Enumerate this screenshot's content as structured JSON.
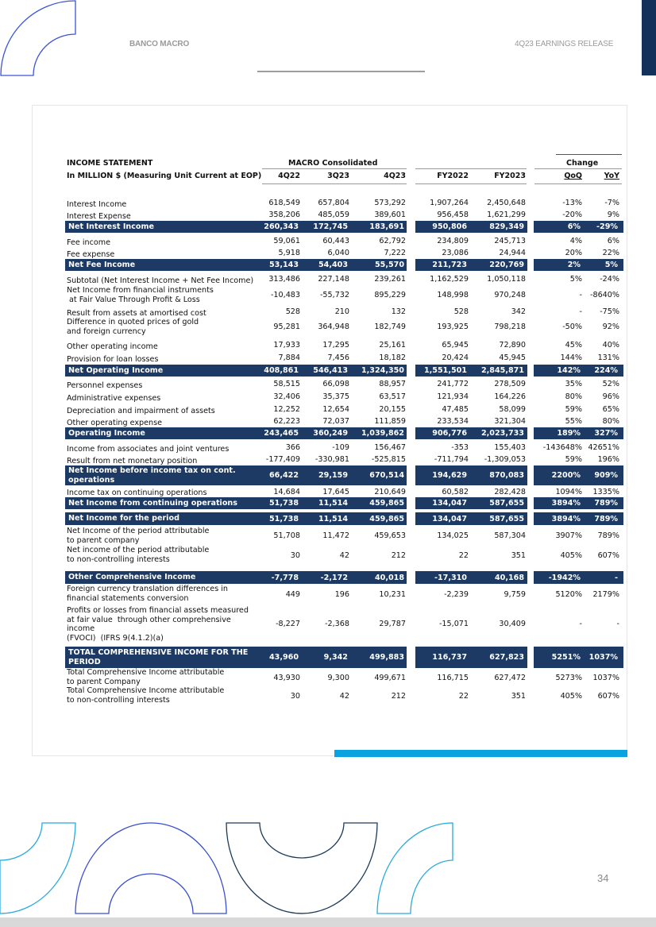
{
  "header": {
    "company": "BANCO MACRO",
    "report": "4Q23 EARNINGS RELEASE"
  },
  "page_number": "34",
  "table": {
    "title": "INCOME STATEMENT",
    "group_quarters": "MACRO Consolidated",
    "group_change": "Change",
    "units_label": "In MILLION $ (Measuring Unit Current at EOP)",
    "columns": [
      "4Q22",
      "3Q23",
      "4Q23",
      "FY2022",
      "FY2023",
      "QoQ",
      "YoY"
    ],
    "rows": [
      {
        "label": [
          "Interest Income"
        ],
        "values": [
          "618,549",
          "657,804",
          "573,292",
          "1,907,264",
          "2,450,648",
          "-13%",
          "-7%"
        ],
        "highlight": false
      },
      {
        "label": [
          "Interest Expense"
        ],
        "values": [
          "358,206",
          "485,059",
          "389,601",
          "956,458",
          "1,621,299",
          "-20%",
          "9%"
        ],
        "highlight": false
      },
      {
        "label": [
          "Net Interest Income"
        ],
        "values": [
          "260,343",
          "172,745",
          "183,691",
          "950,806",
          "829,349",
          "6%",
          "-29%"
        ],
        "highlight": true
      },
      {
        "label": [
          "Fee income"
        ],
        "values": [
          "59,061",
          "60,443",
          "62,792",
          "234,809",
          "245,713",
          "4%",
          "6%"
        ],
        "highlight": false
      },
      {
        "label": [
          "Fee expense"
        ],
        "values": [
          "5,918",
          "6,040",
          "7,222",
          "23,086",
          "24,944",
          "20%",
          "22%"
        ],
        "highlight": false
      },
      {
        "label": [
          "Net Fee Income"
        ],
        "values": [
          "53,143",
          "54,403",
          "55,570",
          "211,723",
          "220,769",
          "2%",
          "5%"
        ],
        "highlight": true
      },
      {
        "label": [
          "Subtotal (Net Interest Income + Net Fee Income)"
        ],
        "values": [
          "313,486",
          "227,148",
          "239,261",
          "1,162,529",
          "1,050,118",
          "5%",
          "-24%"
        ],
        "highlight": false
      },
      {
        "label": [
          "Net Income from financial instruments",
          " at Fair Value Through Profit & Loss"
        ],
        "values": [
          "-10,483",
          "-55,732",
          "895,229",
          "148,998",
          "970,248",
          "-",
          "-8640%"
        ],
        "highlight": false
      },
      {
        "label": [
          "Result from assets at amortised cost"
        ],
        "values": [
          "528",
          "210",
          "132",
          "528",
          "342",
          "-",
          "-75%"
        ],
        "highlight": false
      },
      {
        "label": [
          "Difference in quoted prices of gold",
          "and foreign currency"
        ],
        "values": [
          "95,281",
          "364,948",
          "182,749",
          "193,925",
          "798,218",
          "-50%",
          "92%"
        ],
        "highlight": false
      },
      {
        "label": [
          "Other operating income"
        ],
        "values": [
          "17,933",
          "17,295",
          "25,161",
          "65,945",
          "72,890",
          "45%",
          "40%"
        ],
        "highlight": false
      },
      {
        "label": [
          "Provision for loan losses"
        ],
        "values": [
          "7,884",
          "7,456",
          "18,182",
          "20,424",
          "45,945",
          "144%",
          "131%"
        ],
        "highlight": false
      },
      {
        "label": [
          "Net Operating Income"
        ],
        "values": [
          "408,861",
          "546,413",
          "1,324,350",
          "1,551,501",
          "2,845,871",
          "142%",
          "224%"
        ],
        "highlight": true
      },
      {
        "label": [
          "Personnel expenses"
        ],
        "values": [
          "58,515",
          "66,098",
          "88,957",
          "241,772",
          "278,509",
          "35%",
          "52%"
        ],
        "highlight": false
      },
      {
        "label": [
          "Administrative expenses"
        ],
        "values": [
          "32,406",
          "35,375",
          "63,517",
          "121,934",
          "164,226",
          "80%",
          "96%"
        ],
        "highlight": false
      },
      {
        "label": [
          "Depreciation and impairment of assets"
        ],
        "values": [
          "12,252",
          "12,654",
          "20,155",
          "47,485",
          "58,099",
          "59%",
          "65%"
        ],
        "highlight": false
      },
      {
        "label": [
          "Other operating expense"
        ],
        "values": [
          "62,223",
          "72,037",
          "111,859",
          "233,534",
          "321,304",
          "55%",
          "80%"
        ],
        "highlight": false
      },
      {
        "label": [
          "Operating Income"
        ],
        "values": [
          "243,465",
          "360,249",
          "1,039,862",
          "906,776",
          "2,023,733",
          "189%",
          "327%"
        ],
        "highlight": true
      },
      {
        "label": [
          "Income from associates and joint ventures"
        ],
        "values": [
          "366",
          "-109",
          "156,467",
          "-353",
          "155,403",
          "-143648%",
          "42651%"
        ],
        "highlight": false
      },
      {
        "label": [
          "Result from net monetary position"
        ],
        "values": [
          "-177,409",
          "-330,981",
          "-525,815",
          "-711,794",
          "-1,309,053",
          "59%",
          "196%"
        ],
        "highlight": false
      },
      {
        "label": [
          "Net Income before income tax on cont.",
          "operations"
        ],
        "values": [
          "66,422",
          "29,159",
          "670,514",
          "194,629",
          "870,083",
          "2200%",
          "909%"
        ],
        "highlight": true
      },
      {
        "label": [
          "Income tax on continuing operations"
        ],
        "values": [
          "14,684",
          "17,645",
          "210,649",
          "60,582",
          "282,428",
          "1094%",
          "1335%"
        ],
        "highlight": false
      },
      {
        "label": [
          "Net Income from continuing operations"
        ],
        "values": [
          "51,738",
          "11,514",
          "459,865",
          "134,047",
          "587,655",
          "3894%",
          "789%"
        ],
        "highlight": true
      },
      {
        "label": [
          "Net Income for the period"
        ],
        "values": [
          "51,738",
          "11,514",
          "459,865",
          "134,047",
          "587,655",
          "3894%",
          "789%"
        ],
        "highlight": true
      },
      {
        "label": [
          "Net Income of the period attributable",
          "to parent company"
        ],
        "values": [
          "51,708",
          "11,472",
          "459,653",
          "134,025",
          "587,304",
          "3907%",
          "789%"
        ],
        "highlight": false
      },
      {
        "label": [
          "Net income of the period attributable",
          "to non-controlling interests"
        ],
        "values": [
          "30",
          "42",
          "212",
          "22",
          "351",
          "405%",
          "607%"
        ],
        "highlight": false
      },
      {
        "label": [
          "Other Comprehensive Income"
        ],
        "values": [
          "-7,778",
          "-2,172",
          "40,018",
          "-17,310",
          "40,168",
          "-1942%",
          "-"
        ],
        "highlight": true
      },
      {
        "label": [
          "Foreign currency translation differences in",
          "financial statements conversion"
        ],
        "values": [
          "449",
          "196",
          "10,231",
          "-2,239",
          "9,759",
          "5120%",
          "2179%"
        ],
        "highlight": false
      },
      {
        "label": [
          "Profits or losses from financial assets measured",
          "at fair value  through other comprehensive",
          "income",
          "(FVOCI)  (IFRS 9(4.1.2)(a)"
        ],
        "values": [
          "-8,227",
          "-2,368",
          "29,787",
          "-15,071",
          "30,409",
          "-",
          "-"
        ],
        "highlight": false
      },
      {
        "label": [
          "TOTAL COMPREHENSIVE INCOME FOR THE",
          "PERIOD"
        ],
        "values": [
          "43,960",
          "9,342",
          "499,883",
          "116,737",
          "627,823",
          "5251%",
          "1037%"
        ],
        "highlight": true
      },
      {
        "label": [
          "Total Comprehensive Income attributable",
          "to parent Company"
        ],
        "values": [
          "43,930",
          "9,300",
          "499,671",
          "116,715",
          "627,472",
          "5273%",
          "1037%"
        ],
        "highlight": false
      },
      {
        "label": [
          "Total Comprehensive Income attributable",
          "to non-controlling interests"
        ],
        "values": [
          "30",
          "42",
          "212",
          "22",
          "351",
          "405%",
          "607%"
        ],
        "highlight": false
      }
    ]
  },
  "colors": {
    "highlight_row": "#1c3a63",
    "accent_blue": "#0aa3e0",
    "corner_navy": "#13315a"
  }
}
